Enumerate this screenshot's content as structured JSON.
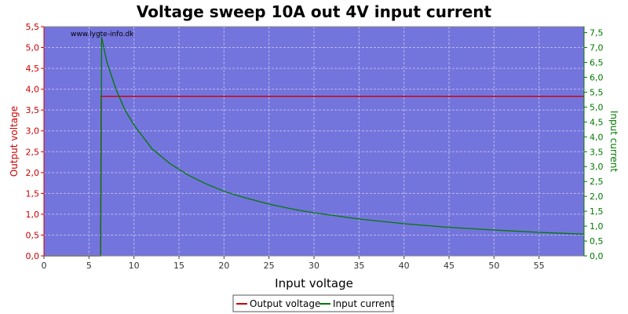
{
  "chart_data": {
    "type": "line",
    "title": "Voltage sweep 10A out 4V input current",
    "xlabel": "Input voltage",
    "ylabel_left": "Output voltage",
    "ylabel_right": "Input current",
    "watermark": "www.lygte-info.dk",
    "xlim": [
      0,
      60
    ],
    "ylim_left": [
      0,
      5.5
    ],
    "ylim_right": [
      0,
      7.7
    ],
    "x_ticks": [
      "0",
      "5",
      "10",
      "15",
      "20",
      "25",
      "30",
      "35",
      "40",
      "45",
      "50",
      "55"
    ],
    "y_left_ticks": [
      "0,0",
      "0,5",
      "1,0",
      "1,5",
      "2,0",
      "2,5",
      "3,0",
      "3,5",
      "4,0",
      "4,5",
      "5,0",
      "5,5"
    ],
    "y_right_ticks": [
      "0,0",
      "0,5",
      "1,0",
      "1,5",
      "2,0",
      "2,5",
      "3,0",
      "3,5",
      "4,0",
      "4,5",
      "5,0",
      "5,5",
      "6,0",
      "6,5",
      "7,0",
      "7,5"
    ],
    "grid": true,
    "legend_position": "bottom-center",
    "series": [
      {
        "name": "Output voltage",
        "axis": "left",
        "color": "#cc0000",
        "points": [
          [
            0,
            0
          ],
          [
            6.3,
            0
          ],
          [
            6.35,
            3.83
          ],
          [
            60,
            3.83
          ]
        ]
      },
      {
        "name": "Input current",
        "axis": "right",
        "color": "#007a00",
        "points": [
          [
            0,
            0
          ],
          [
            6.3,
            0
          ],
          [
            6.4,
            7.35
          ],
          [
            7,
            6.5
          ],
          [
            8,
            5.6
          ],
          [
            9,
            4.9
          ],
          [
            10,
            4.4
          ],
          [
            12,
            3.6
          ],
          [
            14,
            3.1
          ],
          [
            16,
            2.72
          ],
          [
            18,
            2.42
          ],
          [
            20,
            2.17
          ],
          [
            22,
            1.98
          ],
          [
            25,
            1.74
          ],
          [
            28,
            1.55
          ],
          [
            30,
            1.45
          ],
          [
            35,
            1.24
          ],
          [
            40,
            1.08
          ],
          [
            45,
            0.96
          ],
          [
            50,
            0.87
          ],
          [
            55,
            0.79
          ],
          [
            60,
            0.73
          ]
        ]
      }
    ],
    "colors": {
      "plot_background": "#7474dd",
      "grid": "#b8b8ee",
      "left_axis": "#cc0000",
      "right_axis": "#007a00"
    }
  }
}
